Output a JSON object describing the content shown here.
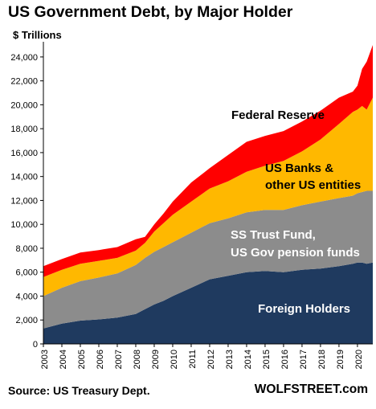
{
  "chart_data": {
    "type": "area",
    "stacked": true,
    "title": "US Government Debt, by Major Holder",
    "ylabel": "$ Trillions",
    "ylim": [
      0,
      25000
    ],
    "yticks": [
      0,
      2000,
      4000,
      6000,
      8000,
      10000,
      12000,
      14000,
      16000,
      18000,
      20000,
      22000,
      24000
    ],
    "ytick_labels": [
      "0",
      "2,000",
      "4,000",
      "6,000",
      "8,000",
      "10,000",
      "12,000",
      "14,000",
      "16,000",
      "18,000",
      "20,000",
      "22,000",
      "24,000"
    ],
    "xlim": [
      2003,
      2020.83
    ],
    "xticks": [
      "2003",
      "2004",
      "2005",
      "2006",
      "2007",
      "2008",
      "2009",
      "2010",
      "2011",
      "2012",
      "2013",
      "2014",
      "2015",
      "2016",
      "2017",
      "2018",
      "2019",
      "2020"
    ],
    "x": [
      2003.0,
      2004.0,
      2005.0,
      2006.0,
      2007.0,
      2008.0,
      2008.5,
      2009.0,
      2009.5,
      2010.0,
      2011.0,
      2012.0,
      2013.0,
      2014.0,
      2015.0,
      2016.0,
      2017.0,
      2018.0,
      2019.0,
      2019.75,
      2020.0,
      2020.25,
      2020.5,
      2020.83
    ],
    "series": [
      {
        "name": "Foreign Holders",
        "color": "#1f3a5f",
        "values": [
          1300,
          1700,
          1950,
          2050,
          2200,
          2500,
          2900,
          3300,
          3600,
          4000,
          4700,
          5400,
          5700,
          6000,
          6100,
          6000,
          6200,
          6300,
          6500,
          6700,
          6800,
          6800,
          6700,
          6800
        ]
      },
      {
        "name": "SS Trust Fund, US Gov pension funds",
        "color": "#8c8c8c",
        "values": [
          2700,
          3000,
          3300,
          3500,
          3700,
          4100,
          4300,
          4400,
          4500,
          4500,
          4600,
          4700,
          4800,
          5000,
          5100,
          5200,
          5400,
          5600,
          5700,
          5700,
          5800,
          5900,
          6100,
          6000
        ]
      },
      {
        "name": "US Banks & other US entities",
        "color": "#ffb800",
        "values": [
          1600,
          1500,
          1450,
          1400,
          1300,
          1200,
          1250,
          1700,
          2000,
          2300,
          2600,
          2900,
          3100,
          3400,
          3700,
          4100,
          4500,
          5200,
          6200,
          7000,
          7000,
          7200,
          6800,
          7800
        ]
      },
      {
        "name": "Federal Reserve",
        "color": "#ff0000",
        "values": [
          900,
          900,
          950,
          900,
          900,
          950,
          500,
          600,
          800,
          1100,
          1600,
          1700,
          2200,
          2500,
          2500,
          2500,
          2500,
          2400,
          2200,
          1700,
          2000,
          3100,
          4000,
          4400
        ]
      }
    ],
    "annotations": [
      "Federal Reserve",
      "US Banks &",
      "other US entities",
      "SS Trust Fund,",
      "US Gov pension funds",
      "Foreign Holders"
    ],
    "source": "Source: US Treasury Dept.",
    "brand": "WOLFSTREET.com"
  }
}
